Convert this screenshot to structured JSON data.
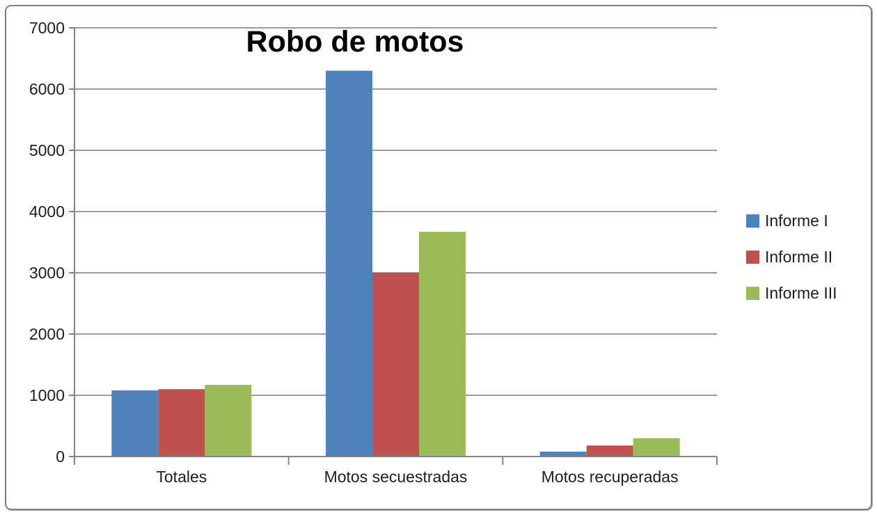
{
  "chart_data": {
    "type": "bar",
    "title": "Robo de motos",
    "categories": [
      "Totales",
      "Motos secuestradas",
      "Motos recuperadas"
    ],
    "series": [
      {
        "name": "Informe I",
        "color": "#4F81BD",
        "values": [
          1080,
          6300,
          80
        ]
      },
      {
        "name": "Informe II",
        "color": "#C0504D",
        "values": [
          1100,
          3000,
          180
        ]
      },
      {
        "name": "Informe III",
        "color": "#9BBB59",
        "values": [
          1170,
          3670,
          300
        ]
      }
    ],
    "xlabel": "",
    "ylabel": "",
    "ylim": [
      0,
      7000
    ],
    "yticks": [
      0,
      1000,
      2000,
      3000,
      4000,
      5000,
      6000,
      7000
    ],
    "grid": true,
    "legend_position": "right"
  },
  "style": {
    "grid_color": "#9a9a9a",
    "axis_color": "#848484",
    "tick_label_color": "#1f1f1f",
    "category_label_color": "#1f1f1f",
    "legend_text_color": "#1f1f1f",
    "title_color": "#000000",
    "frame_border_color": "#7f7f7f",
    "background_color": "#ffffff"
  }
}
